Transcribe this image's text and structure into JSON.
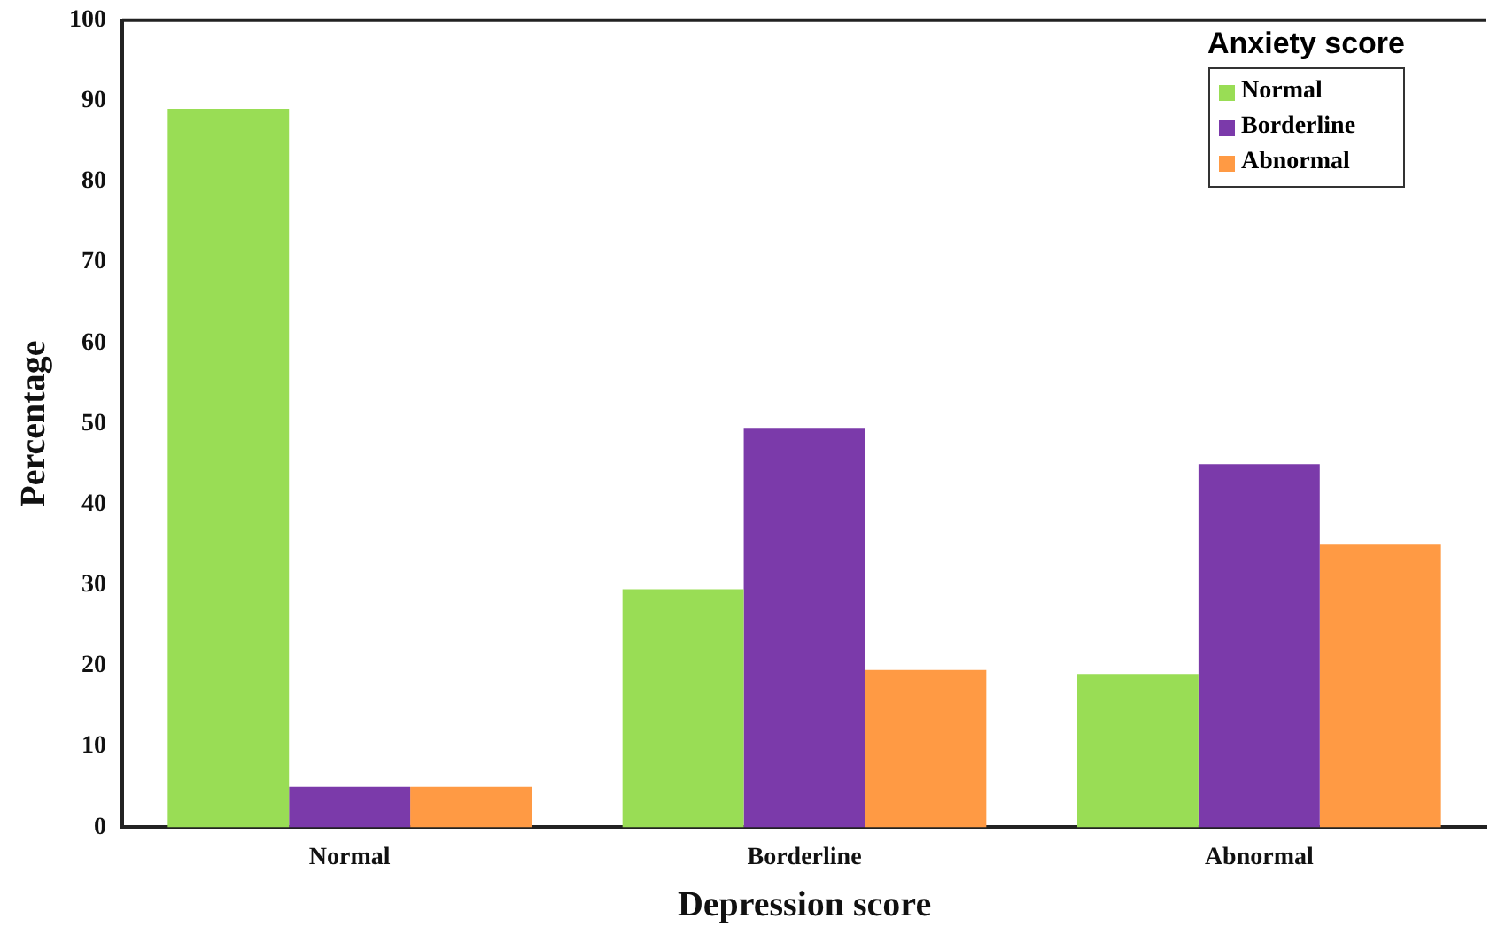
{
  "chart_data": {
    "type": "bar",
    "xlabel": "Depression score",
    "ylabel": "Percentage",
    "legend_title": "Anxiety score",
    "categories": [
      "Normal",
      "Borderline",
      "Abnormal"
    ],
    "series": [
      {
        "name": "Normal",
        "color": "#99dd55",
        "values": [
          89,
          29.5,
          19
        ]
      },
      {
        "name": "Borderline",
        "color": "#7b3aaa",
        "values": [
          5,
          49.5,
          45
        ]
      },
      {
        "name": "Abnormal",
        "color": "#ff9a44",
        "values": [
          5,
          19.5,
          35
        ]
      }
    ],
    "ylim": [
      0,
      100
    ],
    "yticks": [
      0,
      10,
      20,
      30,
      40,
      50,
      60,
      70,
      80,
      90,
      100
    ],
    "grid": false,
    "legend": "top right"
  }
}
